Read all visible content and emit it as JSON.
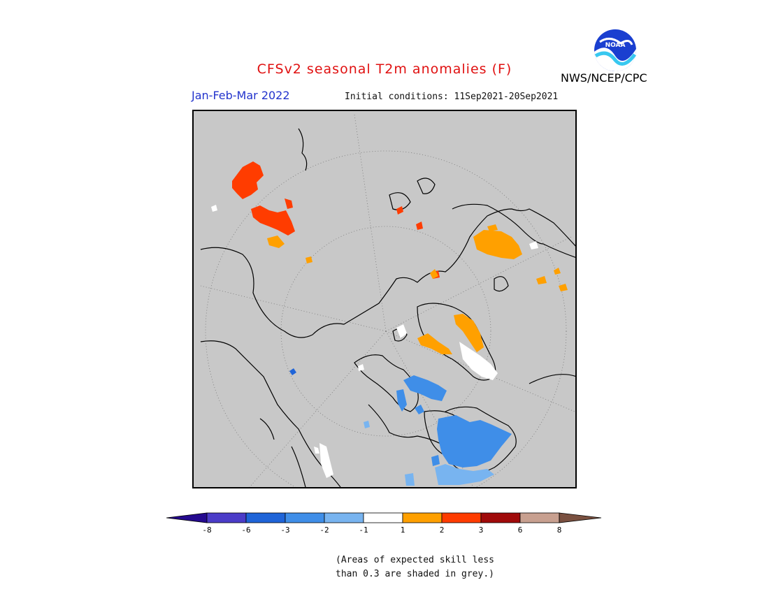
{
  "header": {
    "title": "CFSv2 seasonal T2m anomalies (F)",
    "period": "Jan-Feb-Mar 2022",
    "initial_conditions": "Initial conditions: 11Sep2021-20Sep2021",
    "agency": "NWS/NCEP/CPC",
    "logo_text": "NOAA"
  },
  "legend": {
    "ticks": [
      "-8",
      "-6",
      "-3",
      "-2",
      "-1",
      "1",
      "2",
      "3",
      "6",
      "8"
    ],
    "colors": [
      "#250a8f",
      "#4b3cc8",
      "#1f64d8",
      "#3f8ee8",
      "#78b4f0",
      "#ffffff",
      "#ffa000",
      "#ff3c00",
      "#a00a0a",
      "#c8a090",
      "#7a5040"
    ]
  },
  "note": {
    "line1": "(Areas of expected skill less",
    "line2": "than 0.3 are shaded in grey.)"
  },
  "map": {
    "projection": "north-polar-stereographic",
    "background_color": "#c8c8c8"
  }
}
